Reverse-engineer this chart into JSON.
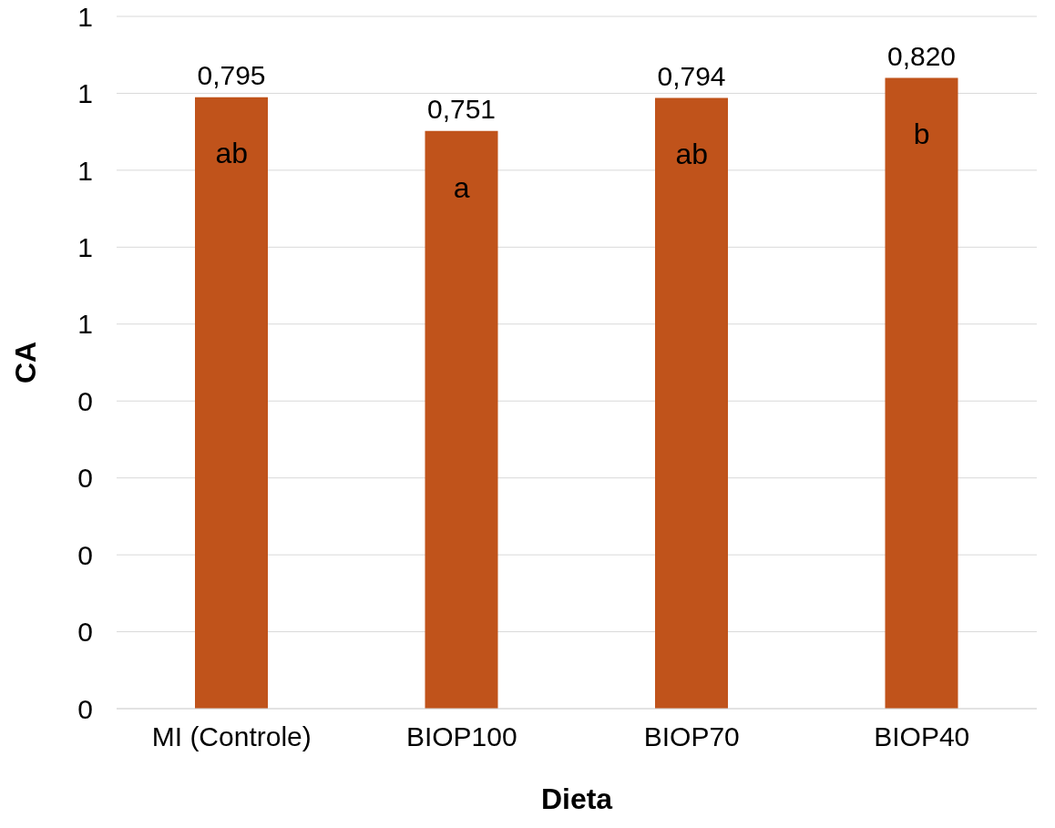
{
  "chart_data": {
    "type": "bar",
    "xlabel": "Dieta",
    "ylabel": "CA",
    "categories": [
      "MI (Controle)",
      "BIOP100",
      "BIOP70",
      "BIOP40"
    ],
    "values": [
      0.795,
      0.751,
      0.794,
      0.82
    ],
    "value_labels": [
      "0,795",
      "0,751",
      "0,794",
      "0,820"
    ],
    "color": "#c0531b",
    "ylim": [
      0,
      0.9
    ],
    "yticks": [
      {
        "value": 0,
        "label": "0"
      },
      {
        "value": 0.1,
        "label": "0"
      },
      {
        "value": 0.2,
        "label": "0"
      },
      {
        "value": 0.3,
        "label": "0"
      },
      {
        "value": 0.4,
        "label": "0"
      },
      {
        "value": 0.5,
        "label": "1"
      },
      {
        "value": 0.6,
        "label": "1"
      },
      {
        "value": 0.7,
        "label": "1"
      },
      {
        "value": 0.8,
        "label": "1"
      },
      {
        "value": 0.9,
        "label": "1"
      }
    ],
    "grid": "y",
    "legend": false,
    "annotations": [
      "ab",
      "a",
      "ab",
      "b"
    ]
  }
}
